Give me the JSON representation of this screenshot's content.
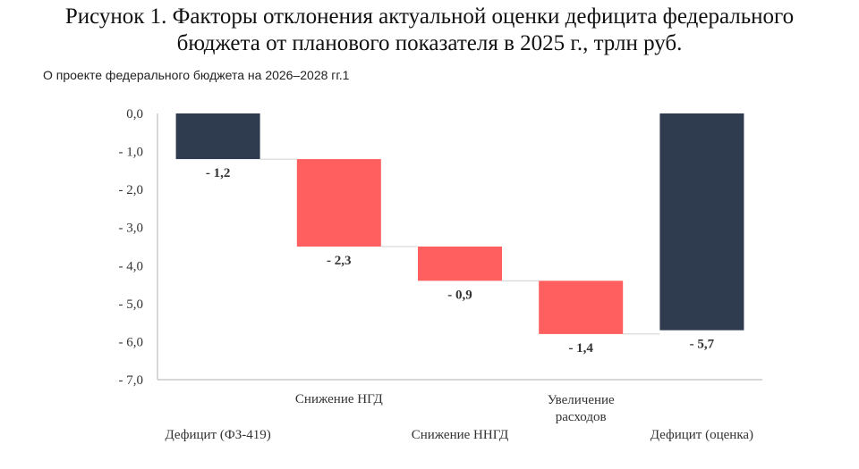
{
  "header": {
    "title_line1": "Рисунок 1. Факторы отклонения актуальной оценки дефицита федерального",
    "title_line2": "бюджета от планового показателя в 2025 г., трлн руб.",
    "subtitle": "О проекте федерального бюджета на 2026–2028 гг.1"
  },
  "chart_data": {
    "type": "bar",
    "subtype": "waterfall",
    "title": "Факторы отклонения актуальной оценки дефицита федерального бюджета от планового показателя в 2025 г., трлн руб.",
    "categories": [
      [
        "Дефицит (ФЗ-419)"
      ],
      [
        "Снижение НГД"
      ],
      [
        "Снижение ННГД"
      ],
      [
        "Увеличение",
        "расходов"
      ],
      [
        "Дефицит (оценка)"
      ]
    ],
    "values": [
      -1.2,
      -2.3,
      -0.9,
      -1.4,
      -5.7
    ],
    "bar_kinds": [
      "total",
      "delta",
      "delta",
      "delta",
      "total"
    ],
    "data_labels": [
      "- 1,2",
      "- 2,3",
      "- 0,9",
      "- 1,4",
      "- 5,7"
    ],
    "ylim": [
      -7.0,
      0.0
    ],
    "yticks": [
      0,
      -1,
      -2,
      -3,
      -4,
      -5,
      -6,
      -7
    ],
    "ytick_labels": [
      "0,0",
      "- 1,0",
      "- 2,0",
      "- 3,0",
      "- 4,0",
      "- 5,0",
      "- 6,0",
      "- 7,0"
    ],
    "xlabel": "",
    "ylabel": "",
    "grid": false,
    "legend": "none",
    "colors": {
      "total": "#2f3b4e",
      "delta": "#ff5f5f",
      "axis": "#bfbfbf",
      "connector": "#d0d0d0"
    }
  }
}
